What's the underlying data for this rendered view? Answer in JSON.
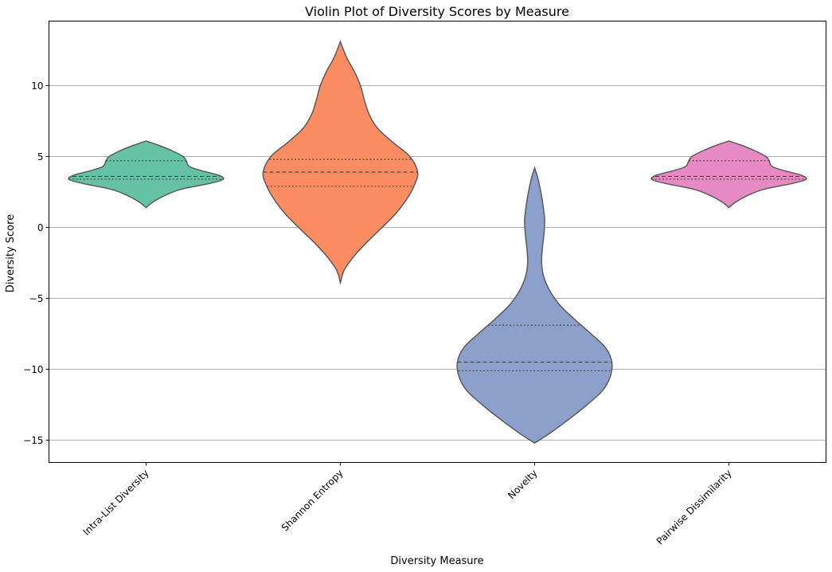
{
  "chart_data": {
    "type": "violin",
    "title": "Violin Plot of Diversity Scores by Measure",
    "xlabel": "Diversity Measure",
    "ylabel": "Diversity Score",
    "ylim": [
      -16.6,
      14.5
    ],
    "yticks": [
      -15,
      -10,
      -5,
      0,
      5,
      10
    ],
    "ytick_labels": [
      "−15",
      "−10",
      "−5",
      "0",
      "5",
      "10"
    ],
    "grid": "horizontal",
    "categories": [
      "Intra-List Diversity",
      "Shannon Entropy",
      "Novelty",
      "Pairwise Dissimilarity"
    ],
    "series": [
      {
        "category": "Intra-List Diversity",
        "color": "#66c2a5",
        "min": 1.4,
        "max": 6.1,
        "q1": 3.4,
        "median": 3.6,
        "q3": 4.7,
        "profile": [
          [
            1.4,
            0.0
          ],
          [
            1.8,
            0.09
          ],
          [
            2.3,
            0.26
          ],
          [
            2.7,
            0.46
          ],
          [
            3.1,
            0.82
          ],
          [
            3.4,
            1.0
          ],
          [
            3.7,
            0.93
          ],
          [
            4.0,
            0.72
          ],
          [
            4.3,
            0.56
          ],
          [
            4.7,
            0.52
          ],
          [
            5.0,
            0.48
          ],
          [
            5.4,
            0.34
          ],
          [
            5.8,
            0.16
          ],
          [
            6.1,
            0.0
          ]
        ]
      },
      {
        "category": "Shannon Entropy",
        "color": "#fc8d62",
        "min": -3.9,
        "max": 13.1,
        "q1": 2.9,
        "median": 3.9,
        "q3": 4.8,
        "profile": [
          [
            -3.9,
            0.0
          ],
          [
            -3.0,
            0.05
          ],
          [
            -2.0,
            0.18
          ],
          [
            -1.0,
            0.35
          ],
          [
            0.0,
            0.54
          ],
          [
            1.0,
            0.72
          ],
          [
            2.0,
            0.86
          ],
          [
            3.0,
            0.96
          ],
          [
            3.9,
            1.0
          ],
          [
            5.0,
            0.9
          ],
          [
            6.0,
            0.68
          ],
          [
            7.0,
            0.48
          ],
          [
            8.0,
            0.37
          ],
          [
            9.0,
            0.31
          ],
          [
            10.0,
            0.26
          ],
          [
            11.0,
            0.18
          ],
          [
            12.0,
            0.08
          ],
          [
            13.1,
            0.0
          ]
        ]
      },
      {
        "category": "Novelty",
        "color": "#8da0cb",
        "min": -15.2,
        "max": 4.2,
        "q1": -10.1,
        "median": -9.5,
        "q3": -6.9,
        "profile": [
          [
            -15.2,
            0.0
          ],
          [
            -14.5,
            0.2
          ],
          [
            -13.5,
            0.45
          ],
          [
            -12.5,
            0.68
          ],
          [
            -11.5,
            0.88
          ],
          [
            -10.5,
            0.98
          ],
          [
            -9.5,
            1.0
          ],
          [
            -8.5,
            0.92
          ],
          [
            -7.5,
            0.73
          ],
          [
            -6.5,
            0.52
          ],
          [
            -5.5,
            0.33
          ],
          [
            -4.5,
            0.2
          ],
          [
            -3.5,
            0.12
          ],
          [
            -2.5,
            0.09
          ],
          [
            -1.5,
            0.1
          ],
          [
            -0.5,
            0.12
          ],
          [
            0.5,
            0.13
          ],
          [
            1.5,
            0.11
          ],
          [
            2.5,
            0.08
          ],
          [
            3.5,
            0.04
          ],
          [
            4.2,
            0.0
          ]
        ]
      },
      {
        "category": "Pairwise Dissimilarity",
        "color": "#e78ac3",
        "min": 1.4,
        "max": 6.1,
        "q1": 3.4,
        "median": 3.6,
        "q3": 4.7,
        "profile": [
          [
            1.4,
            0.0
          ],
          [
            1.8,
            0.09
          ],
          [
            2.3,
            0.26
          ],
          [
            2.7,
            0.46
          ],
          [
            3.1,
            0.82
          ],
          [
            3.4,
            1.0
          ],
          [
            3.7,
            0.93
          ],
          [
            4.0,
            0.72
          ],
          [
            4.3,
            0.56
          ],
          [
            4.7,
            0.52
          ],
          [
            5.0,
            0.48
          ],
          [
            5.4,
            0.34
          ],
          [
            5.8,
            0.16
          ],
          [
            6.1,
            0.0
          ]
        ]
      }
    ]
  }
}
